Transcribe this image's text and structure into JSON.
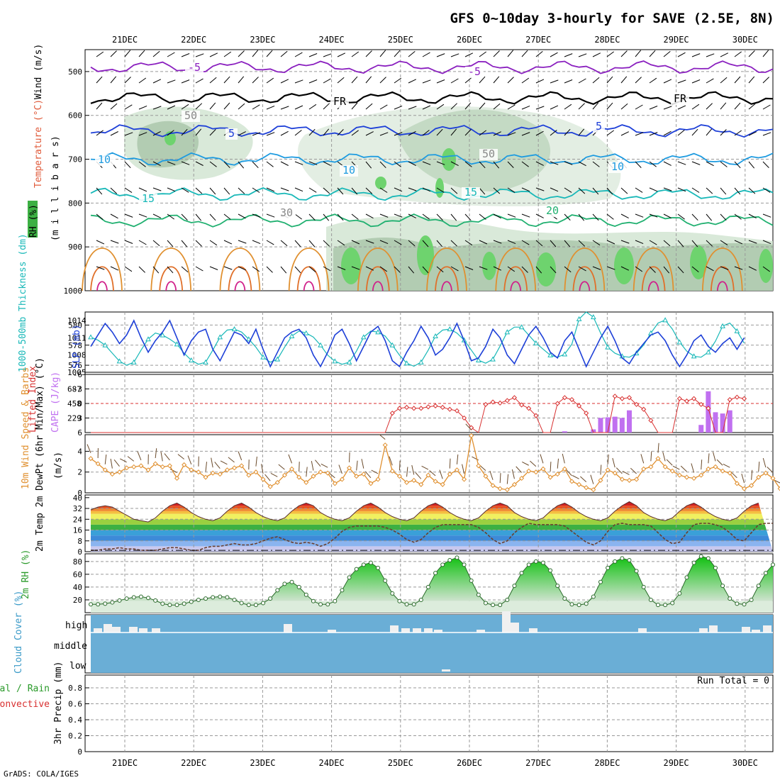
{
  "chart_data": {
    "type": "meteogram",
    "title": "GFS 0~10day 3-hourly for SAVE (2.5E, 8N)",
    "credit": "GrADS: COLA/IGES",
    "dates": [
      "21DEC",
      "22DEC",
      "23DEC",
      "24DEC",
      "25DEC",
      "26DEC",
      "27DEC",
      "28DEC",
      "29DEC",
      "30DEC"
    ],
    "colors": {
      "purple": "#8a1fbf",
      "black": "#000000",
      "blue": "#1e40d8",
      "lightblue": "#1e9be0",
      "cyan": "#18b8b8",
      "green": "#20b070",
      "orange": "#e09030",
      "darkorange": "#e0702a",
      "magenta": "#d0208a",
      "rh": "#3cb043",
      "lifted": "#d83030",
      "cape": "#c070f0",
      "cloud": "#6aaed6",
      "wind10": "#e09030"
    },
    "panels": {
      "upper": {
        "labels": {
          "wind": "Wind (m/s)",
          "temperature": "Temperature (°C)",
          "rh": "RH (%)",
          "millibars": "(m i l l i b a r s)"
        },
        "y_ticks": [
          "500",
          "600",
          "700",
          "800",
          "900",
          "1000"
        ],
        "ylim": [
          450,
          1000
        ],
        "contour_labels": [
          "-5",
          "-5",
          "FR",
          "FR",
          "5",
          "5",
          "10",
          "10",
          "10",
          "15",
          "15",
          "20",
          "50",
          "50",
          "30"
        ],
        "isotherms": [
          {
            "label": "-5",
            "level_mb": 490,
            "color": "purple"
          },
          {
            "label": "FR",
            "level_mb": 560,
            "color": "black"
          },
          {
            "label": "5",
            "level_mb": 635,
            "color": "blue"
          },
          {
            "label": "10",
            "level_mb": 700,
            "color": "lightblue"
          },
          {
            "label": "15",
            "level_mb": 780,
            "color": "cyan"
          },
          {
            "label": "20",
            "level_mb": 840,
            "color": "green"
          }
        ]
      },
      "thickness": {
        "labels": {
          "thickness": "1000-500mb Thickness (dm)",
          "slp": "SLP (mb)"
        },
        "left_ticks": [
          "580",
          "578",
          "576"
        ],
        "right_ticks": [
          "1014",
          "1011",
          "1008",
          "1005"
        ],
        "thickness_dm": [
          578.8,
          578.5,
          578.0,
          577.2,
          576.4,
          576.0,
          576.3,
          577.5,
          578.6,
          579.2,
          579.0,
          578.6,
          578.1,
          577.2,
          576.5,
          576.1,
          576.3,
          577.5,
          578.8,
          579.5,
          579.6,
          579.3,
          578.6,
          577.8,
          576.8,
          576.3,
          576.6,
          577.8,
          578.9,
          579.4,
          579.2,
          578.8,
          578.0,
          577.0,
          576.4,
          576.1,
          576.3,
          577.4,
          578.8,
          579.4,
          579.3,
          578.9,
          578.0,
          577.0,
          576.2,
          575.9,
          576.3,
          577.5,
          578.9,
          579.5,
          579.6,
          579.2,
          578.5,
          577.5,
          576.5,
          576.2,
          576.6,
          577.9,
          579.3,
          579.8,
          579.8,
          579.0,
          578.2,
          577.6,
          577.0,
          576.8,
          577.1,
          578.1,
          580.6,
          581.3,
          580.8,
          579.2,
          577.8,
          577.2,
          576.9,
          576.8,
          577.2,
          578.0,
          579.2,
          580.2,
          580.5,
          579.6,
          578.3,
          577.4,
          576.9,
          576.8,
          577.3,
          578.4,
          579.9,
          580.2,
          579.4,
          578.2
        ],
        "slp_mb": [
          1009.5,
          1011.5,
          1013.5,
          1012.0,
          1010.0,
          1011.5,
          1014.0,
          1011.0,
          1008.5,
          1010.5,
          1012.0,
          1014.0,
          1011.0,
          1008.0,
          1010.5,
          1012.0,
          1012.5,
          1009.0,
          1007.0,
          1009.5,
          1012.0,
          1011.5,
          1010.0,
          1012.5,
          1009.0,
          1006.0,
          1008.5,
          1011.0,
          1012.0,
          1012.5,
          1011.0,
          1008.0,
          1006.0,
          1008.5,
          1011.5,
          1012.5,
          1010.0,
          1007.0,
          1009.5,
          1012.0,
          1013.0,
          1010.5,
          1007.0,
          1006.0,
          1008.5,
          1010.5,
          1013.0,
          1011.0,
          1008.0,
          1009.0,
          1011.0,
          1013.5,
          1010.5,
          1007.0,
          1007.5,
          1009.5,
          1012.5,
          1011.0,
          1008.0,
          1006.5,
          1009.0,
          1011.5,
          1013.0,
          1011.0,
          1008.5,
          1007.5,
          1010.5,
          1012.0,
          1009.0,
          1006.0,
          1008.5,
          1011.0,
          1013.0,
          1010.5,
          1007.5,
          1006.5,
          1008.5,
          1010.0,
          1011.5,
          1012.0,
          1010.5,
          1008.0,
          1006.0,
          1008.0,
          1010.5,
          1011.5,
          1009.5,
          1008.5,
          1010.0,
          1011.0,
          1009.0,
          1011.0
        ]
      },
      "instability": {
        "labels": {
          "lifted": "Lifted Index",
          "cape": "CAPE (J/kg)"
        },
        "left_ticks": [
          "-6",
          "-3",
          "0",
          "3",
          "6"
        ],
        "right_ticks": [
          "687",
          "458",
          "229"
        ],
        "lifted_index": [
          6,
          6,
          6,
          6,
          6,
          6,
          6,
          6,
          6,
          6,
          6,
          6,
          6,
          6,
          6,
          6,
          6,
          6,
          6,
          6,
          6,
          6,
          6,
          6,
          6,
          6,
          6,
          6,
          6,
          6,
          6,
          6,
          6,
          6,
          6,
          6,
          6,
          6,
          6,
          6,
          6,
          6,
          2,
          1,
          0.8,
          1.0,
          1.0,
          0.7,
          0.5,
          0.8,
          1.2,
          1.5,
          3,
          5,
          6,
          0.2,
          -0.3,
          -0.1,
          -0.6,
          -1.2,
          0.3,
          1.0,
          2.5,
          6,
          6,
          0,
          -1.2,
          -0.8,
          0.5,
          2.0,
          6,
          6,
          6,
          -1.5,
          -1.0,
          -1.2,
          0.2,
          1.2,
          3.5,
          6,
          6,
          6,
          -1.0,
          -0.5,
          -1.0,
          0.2,
          1.0,
          6,
          6,
          -0.8,
          -1.3,
          -1.0
        ],
        "cape": [
          0,
          0,
          0,
          0,
          0,
          0,
          0,
          0,
          0,
          0,
          0,
          0,
          0,
          0,
          0,
          0,
          0,
          0,
          0,
          0,
          0,
          0,
          0,
          0,
          0,
          0,
          0,
          0,
          0,
          0,
          0,
          0,
          0,
          0,
          0,
          0,
          0,
          0,
          0,
          0,
          0,
          0,
          0,
          0,
          0,
          0,
          0,
          0,
          0,
          0,
          0,
          0,
          0,
          0,
          0,
          0,
          0,
          0,
          0,
          0,
          0,
          0,
          0,
          0,
          0,
          0,
          20,
          0,
          0,
          0,
          50,
          230,
          240,
          250,
          230,
          350,
          0,
          0,
          0,
          0,
          0,
          0,
          0,
          0,
          0,
          120,
          650,
          320,
          300,
          350,
          0,
          0,
          0,
          0,
          0,
          0
        ]
      },
      "wind10m": {
        "labels": {
          "title": "10m Wind Speed & Barbs",
          "units": "(m/s)"
        },
        "y_ticks": [
          "4",
          "2",
          "0"
        ],
        "speed": [
          3.3,
          2.8,
          2.2,
          1.8,
          2.0,
          2.4,
          2.5,
          2.6,
          2.2,
          2.8,
          2.5,
          2.6,
          1.4,
          2.7,
          2.2,
          2.0,
          1.5,
          1.9,
          1.8,
          2.2,
          2.4,
          2.6,
          1.7,
          2.0,
          1.3,
          0.6,
          1.0,
          1.7,
          2.3,
          1.5,
          1.0,
          1.6,
          2.0,
          1.9,
          0.9,
          1.3,
          2.4,
          1.6,
          1.8,
          0.9,
          1.3,
          4.6,
          2.1,
          1.6,
          1.0,
          1.2,
          0.8,
          1.7,
          1.1,
          0.8,
          1.8,
          2.2,
          1.3,
          5.5,
          2.6,
          1.6,
          0.7,
          0.4,
          0.3,
          0.8,
          1.4,
          2.1,
          2.0,
          2.3,
          1.5,
          1.8,
          2.3,
          1.1,
          0.8,
          0.5,
          0.3,
          1.2,
          2.2,
          1.9,
          1.3,
          1.2,
          1.3,
          2.3,
          2.5,
          3.3,
          2.5,
          2.1,
          1.7,
          1.5,
          1.4,
          1.7,
          2.3,
          2.5,
          2.1,
          1.9,
          0.9,
          0.4,
          0.7,
          1.5,
          1.9,
          1.4,
          0.4
        ]
      },
      "temp2m": {
        "labels": {
          "title": "2m Temp 2m DewPt (6hr Min/Max) (°C)"
        },
        "y_ticks": [
          "40",
          "32",
          "24",
          "16",
          "8",
          "0"
        ],
        "temperature": [
          31,
          33,
          34,
          33,
          30,
          27,
          24,
          23,
          22,
          25,
          30,
          34,
          36,
          33,
          29,
          26,
          24,
          23,
          25,
          30,
          34,
          36,
          33,
          29,
          26,
          24,
          23,
          25,
          30,
          34,
          36,
          34,
          29,
          26,
          24,
          23,
          25,
          30,
          34,
          36,
          33,
          29,
          26,
          24,
          23,
          25,
          30,
          34,
          36,
          33,
          29,
          26,
          24,
          23,
          25,
          30,
          34,
          36,
          34,
          29,
          26,
          24,
          23,
          25,
          30,
          34,
          36,
          33,
          29,
          26,
          24,
          23,
          25,
          30,
          34,
          37,
          34,
          29,
          26,
          24,
          23,
          25,
          30,
          34,
          36,
          33,
          29,
          26,
          24,
          23,
          25,
          30,
          34,
          36
        ],
        "dewpoint": [
          1,
          1,
          2,
          2,
          3,
          2,
          2,
          1,
          1,
          1,
          2,
          3,
          3,
          2,
          1,
          1,
          3,
          4,
          4,
          5,
          6,
          5,
          5,
          6,
          8,
          10,
          11,
          9,
          7,
          6,
          7,
          6,
          4,
          6,
          10,
          15,
          18,
          19,
          19,
          19,
          19,
          18,
          16,
          13,
          9,
          7,
          9,
          14,
          18,
          20,
          20,
          20,
          20,
          20,
          18,
          14,
          9,
          6,
          8,
          14,
          18,
          21,
          20,
          20,
          20,
          20,
          19,
          15,
          11,
          7,
          5,
          8,
          15,
          20,
          21,
          20,
          20,
          20,
          19,
          14,
          9,
          6,
          7,
          14,
          20,
          21,
          21,
          20,
          18,
          14,
          9,
          8,
          14,
          20,
          21,
          21
        ]
      },
      "rh2m": {
        "labels": {
          "title": "2m RH (%)"
        },
        "y_ticks": [
          "80",
          "60",
          "40",
          "20"
        ],
        "rh": [
          13,
          13,
          14,
          16,
          19,
          22,
          24,
          25,
          23,
          19,
          14,
          12,
          12,
          14,
          17,
          20,
          22,
          24,
          25,
          24,
          20,
          15,
          12,
          12,
          15,
          22,
          35,
          45,
          48,
          40,
          28,
          18,
          13,
          13,
          18,
          35,
          55,
          68,
          75,
          78,
          70,
          50,
          30,
          18,
          13,
          13,
          20,
          40,
          62,
          75,
          82,
          86,
          75,
          50,
          28,
          15,
          12,
          12,
          20,
          42,
          62,
          75,
          80,
          78,
          66,
          42,
          22,
          13,
          12,
          14,
          25,
          48,
          70,
          80,
          85,
          82,
          65,
          40,
          20,
          12,
          12,
          15,
          30,
          55,
          78,
          88,
          85,
          70,
          42,
          22,
          14,
          13,
          20,
          42,
          62,
          75
        ]
      },
      "cloud": {
        "labels": {
          "title": "Cloud Cover (%)",
          "high": "high",
          "middle": "middle",
          "low": "low"
        }
      },
      "precip": {
        "labels": {
          "title": "3hr Precip (mm)",
          "total_rain": "Total / Rain",
          "convective": "Convective",
          "run_total": "Run Total = 0"
        },
        "y_ticks": [
          "0.8",
          "0.6",
          "0.4",
          "0.2",
          "0"
        ],
        "values_mm": [
          0,
          0,
          0,
          0,
          0,
          0,
          0,
          0,
          0,
          0
        ]
      }
    }
  }
}
